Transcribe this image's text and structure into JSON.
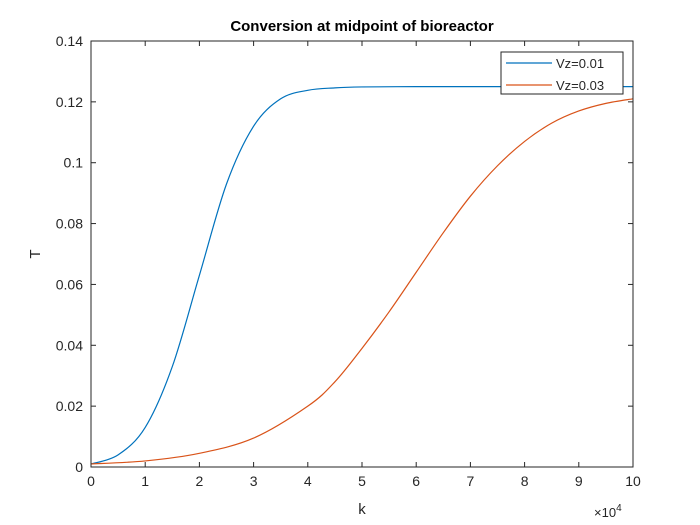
{
  "chart_data": {
    "type": "line",
    "title": "Conversion at midpoint of bioreactor",
    "xlabel": "k",
    "ylabel": "T",
    "x_exponent_label": "×10",
    "x_exponent_power": "4",
    "xlim": [
      0,
      10
    ],
    "ylim": [
      0,
      0.14
    ],
    "x_ticks": [
      0,
      1,
      2,
      3,
      4,
      5,
      6,
      7,
      8,
      9,
      10
    ],
    "x_tick_labels": [
      "0",
      "1",
      "2",
      "3",
      "4",
      "5",
      "6",
      "7",
      "8",
      "9",
      "10"
    ],
    "y_ticks": [
      0,
      0.02,
      0.04,
      0.06,
      0.08,
      0.1,
      0.12,
      0.14
    ],
    "y_tick_labels": [
      "0",
      "0.02",
      "0.04",
      "0.06",
      "0.08",
      "0.1",
      "0.12",
      "0.14"
    ],
    "grid": false,
    "legend_position": "top-right",
    "series": [
      {
        "name": "Vz=0.01",
        "color": "#0072BD",
        "x": [
          0,
          0.5,
          1,
          1.5,
          2,
          2.5,
          3,
          3.5,
          4,
          4.5,
          5,
          6,
          7,
          8,
          9,
          10
        ],
        "y": [
          0.001,
          0.004,
          0.013,
          0.033,
          0.063,
          0.093,
          0.112,
          0.121,
          0.1238,
          0.1246,
          0.1249,
          0.125,
          0.125,
          0.125,
          0.125,
          0.125
        ]
      },
      {
        "name": "Vz=0.03",
        "color": "#D95319",
        "x": [
          0,
          1,
          2,
          3,
          4,
          4.5,
          5,
          5.5,
          6,
          6.5,
          7,
          7.5,
          8,
          8.5,
          9,
          9.5,
          10
        ],
        "y": [
          0.001,
          0.002,
          0.0045,
          0.0095,
          0.02,
          0.028,
          0.039,
          0.051,
          0.064,
          0.077,
          0.089,
          0.099,
          0.107,
          0.113,
          0.117,
          0.1195,
          0.121
        ]
      }
    ]
  }
}
